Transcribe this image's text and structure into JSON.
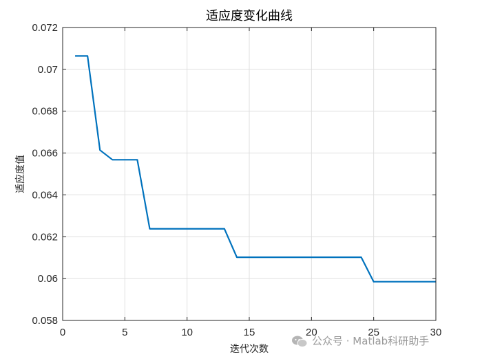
{
  "chart_data": {
    "type": "line",
    "title": "适应度变化曲线",
    "xlabel": "迭代次数",
    "ylabel": "适应度值",
    "xlim": [
      0,
      30
    ],
    "ylim": [
      0.058,
      0.072
    ],
    "xticks": [
      0,
      5,
      10,
      15,
      20,
      25,
      30
    ],
    "xtick_labels": [
      "0",
      "5",
      "10",
      "15",
      "20",
      "25",
      "30"
    ],
    "yticks": [
      0.058,
      0.06,
      0.062,
      0.064,
      0.066,
      0.068,
      0.07,
      0.072
    ],
    "ytick_labels": [
      "0.058",
      "0.06",
      "0.062",
      "0.064",
      "0.066",
      "0.068",
      "0.07",
      "0.072"
    ],
    "grid": true,
    "line_color": "#0072BD",
    "series": [
      {
        "x": [
          1,
          2,
          3,
          4,
          5,
          6,
          7,
          8,
          9,
          10,
          11,
          12,
          13,
          14,
          15,
          16,
          17,
          18,
          19,
          20,
          21,
          22,
          23,
          24,
          25,
          26,
          27,
          28,
          29,
          30
        ],
        "values": [
          0.07064,
          0.07064,
          0.06614,
          0.06568,
          0.06568,
          0.06568,
          0.06238,
          0.06238,
          0.06238,
          0.06238,
          0.06238,
          0.06238,
          0.06238,
          0.06102,
          0.06102,
          0.06102,
          0.06102,
          0.06102,
          0.06102,
          0.06102,
          0.06102,
          0.06102,
          0.06102,
          0.06102,
          0.05985,
          0.05985,
          0.05985,
          0.05985,
          0.05985,
          0.05985
        ]
      }
    ]
  },
  "watermark": {
    "icon": "wechat-icon",
    "text": "公众号 · Matlab科研助手"
  }
}
